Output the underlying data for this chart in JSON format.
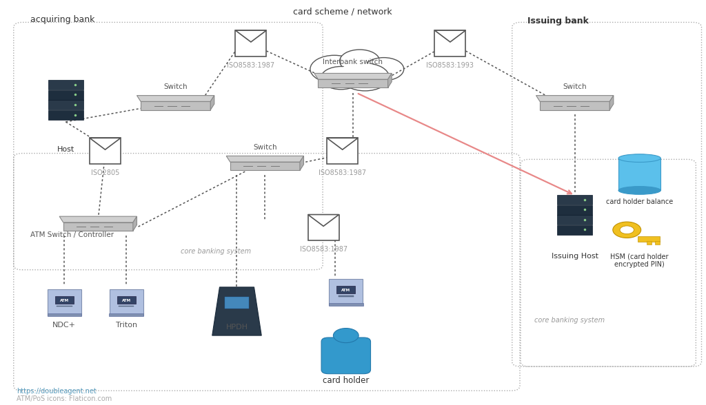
{
  "bg_color": "#ffffff",
  "footer1": "https://doubleagent.net",
  "footer2": "ATM/PoS icons: Flaticon.com",
  "acquiring_bank_label": "acquiring bank",
  "card_scheme_label": "card scheme / network",
  "issuing_bank_label": "Issuing bank",
  "core_banking1_label": "core banking system",
  "core_banking2_label": "core banking system",
  "atm_ctrl_label": "ATM Switch / Controller",
  "host_label": "Host",
  "switch_label": "Switch",
  "interbank_label": "Interbank switch",
  "issuing_host_label": "Issuing Host",
  "ch_balance_label": "card holder balance",
  "hsm_label": "HSM (card holder\nencrypted PIN)",
  "cardholder_label": "card holder",
  "ndc_label": "NDC+",
  "triton_label": "Triton",
  "hpdh_label": "HPDH",
  "iso1_label": "ISO8583:1987",
  "iso2_label": "ISO8583:1993",
  "iso3_label": "ISO8583:1987",
  "iso4_label": "ISO2805",
  "iso5_label": "ISO8583:1987"
}
